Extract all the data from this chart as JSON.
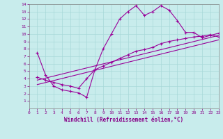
{
  "xlabel": "Windchill (Refroidissement éolien,°C)",
  "bg_color": "#c8ecec",
  "grid_color": "#a8d8d8",
  "line_color": "#990099",
  "xlim": [
    0,
    23
  ],
  "ylim": [
    0,
    14
  ],
  "xticks": [
    0,
    1,
    2,
    3,
    4,
    5,
    6,
    7,
    8,
    9,
    10,
    11,
    12,
    13,
    14,
    15,
    16,
    17,
    18,
    19,
    20,
    21,
    22,
    23
  ],
  "yticks": [
    1,
    2,
    3,
    4,
    5,
    6,
    7,
    8,
    9,
    10,
    11,
    12,
    13,
    14
  ],
  "series1_x": [
    1,
    2,
    3,
    4,
    5,
    6,
    7,
    8,
    9,
    10,
    11,
    12,
    13,
    14,
    15,
    16,
    17,
    18,
    19,
    20,
    21,
    22,
    23
  ],
  "series1_y": [
    7.5,
    4.5,
    3.0,
    2.5,
    2.3,
    2.1,
    1.5,
    5.2,
    8.0,
    10.0,
    12.0,
    13.0,
    13.8,
    12.5,
    13.0,
    13.8,
    13.2,
    11.8,
    10.2,
    10.2,
    9.5,
    9.8,
    10.1
  ],
  "series2_x": [
    1,
    2,
    3,
    4,
    5,
    6,
    7,
    8,
    9,
    10,
    11,
    12,
    13,
    14,
    15,
    16,
    17,
    18,
    19,
    20,
    21,
    22,
    23
  ],
  "series2_y": [
    4.2,
    3.8,
    3.5,
    3.2,
    3.0,
    2.7,
    4.0,
    5.2,
    5.7,
    6.2,
    6.7,
    7.2,
    7.7,
    7.9,
    8.2,
    8.7,
    9.0,
    9.2,
    9.4,
    9.6,
    9.7,
    9.9,
    9.6
  ],
  "series3_x": [
    1,
    23
  ],
  "series3_y": [
    3.8,
    9.8
  ],
  "series4_x": [
    1,
    23
  ],
  "series4_y": [
    3.2,
    9.2
  ]
}
